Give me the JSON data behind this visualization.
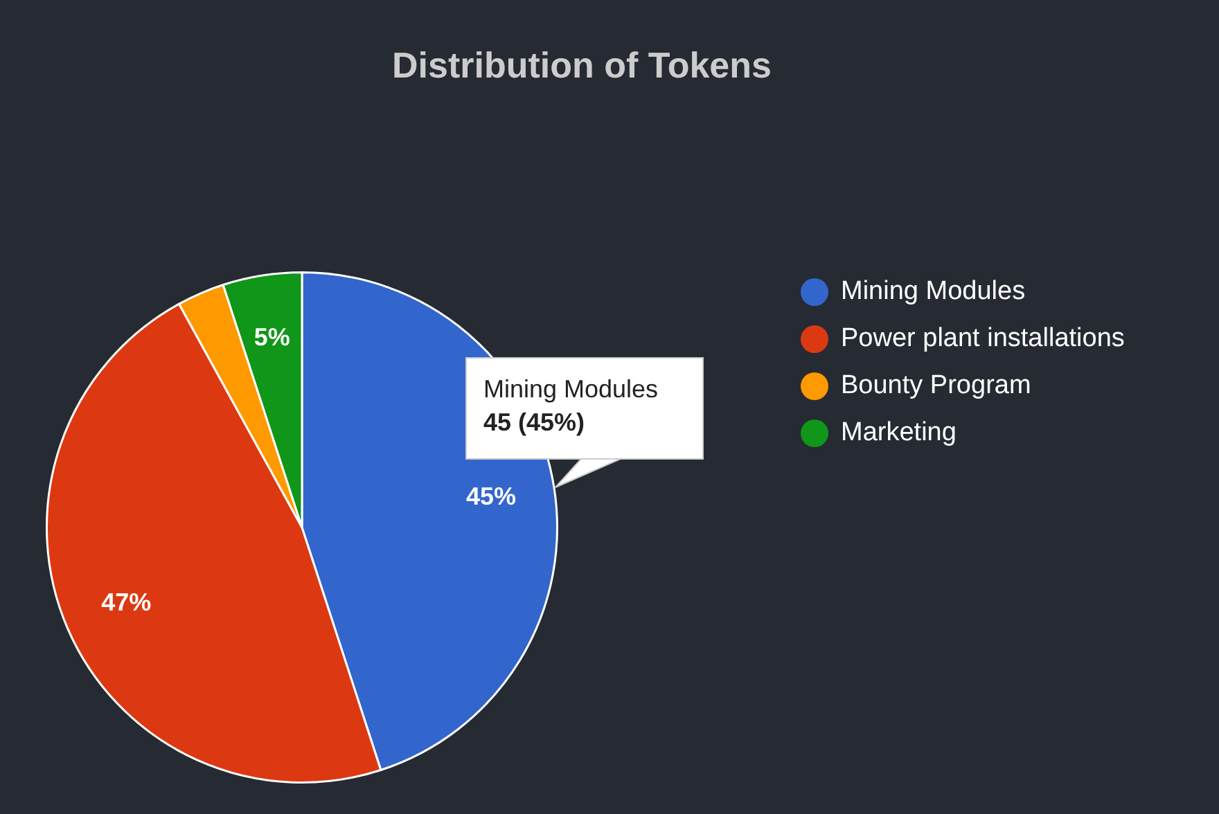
{
  "chart_data": {
    "type": "pie",
    "title": "Distribution of Tokens",
    "categories": [
      "Mining Modules",
      "Power plant installations",
      "Bounty Program",
      "Marketing"
    ],
    "values": [
      45,
      47,
      3,
      5
    ],
    "colors": [
      "#3366cc",
      "#dc3912",
      "#ff9900",
      "#109618"
    ],
    "value_labels": [
      "45%",
      "47%",
      null,
      "5%"
    ],
    "legend": "right",
    "annotations": [
      "Mining Modules",
      "45 (45%)"
    ]
  }
}
